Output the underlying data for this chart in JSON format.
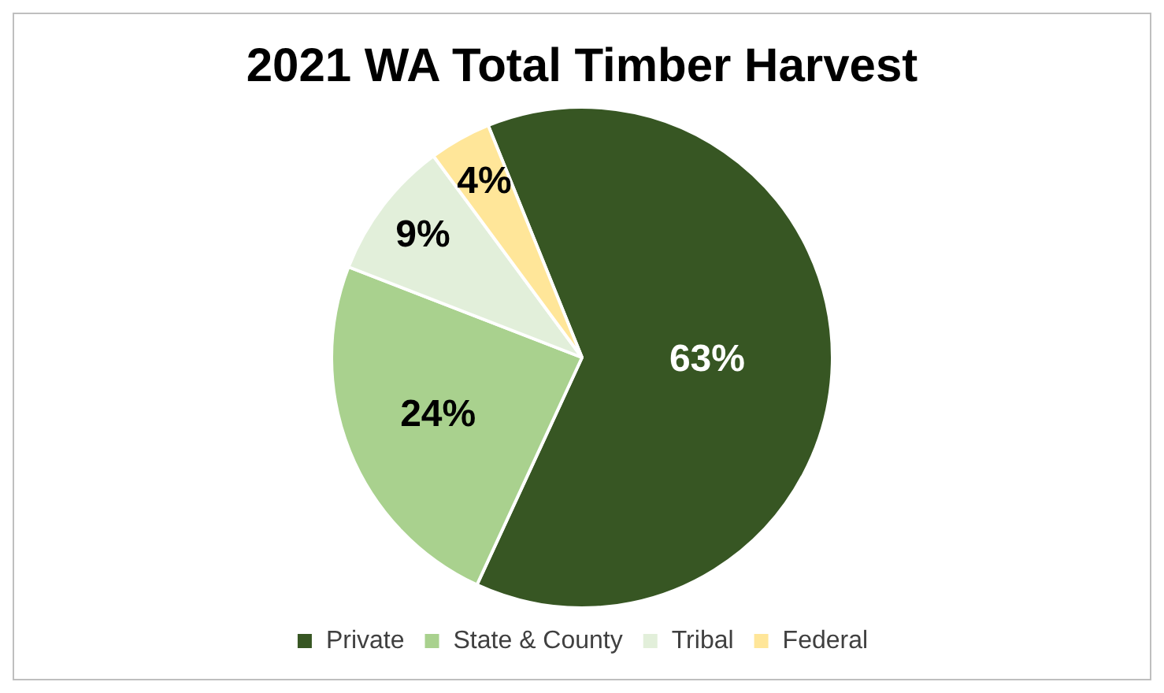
{
  "chart_data": {
    "type": "pie",
    "title": "2021 WA Total Timber Harvest",
    "categories": [
      "Private",
      "State & County",
      "Tribal",
      "Federal"
    ],
    "values": [
      63,
      24,
      9,
      4
    ],
    "colors": [
      "#375623",
      "#a9d18e",
      "#e2efda",
      "#ffe699"
    ],
    "value_labels": [
      "63%",
      "24%",
      "9%",
      "4%"
    ],
    "legend": "bottom"
  }
}
